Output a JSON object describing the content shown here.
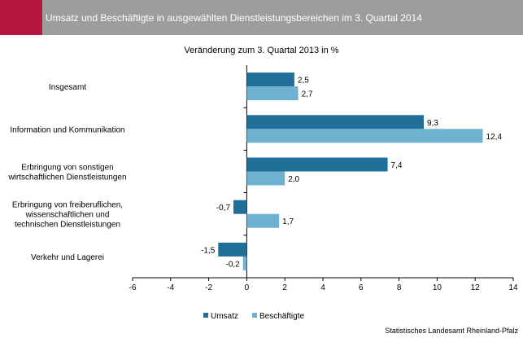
{
  "header": {
    "title": "Umsatz und Beschäftigte in ausgewählten Dienstleistungsbereichen im 3. Quartal 2014",
    "accent_color": "#b7163f",
    "background_color": "#9d9d9d"
  },
  "source": "Statistisches Landesamt Rheinland-Pfalz",
  "chart_data": {
    "type": "bar",
    "orientation": "horizontal",
    "title": "Veränderung zum 3. Quartal 2013 in %",
    "categories": [
      [
        "Insgesamt"
      ],
      [
        "Information und Kommunikation"
      ],
      [
        "Erbringung von sonstigen",
        "wirtschaftlichen Dienstleistungen"
      ],
      [
        "Erbringung von freiberuflichen,",
        "wissenschaftlichen und",
        "technischen Dienstleistungen"
      ],
      [
        "Verkehr und Lagerei"
      ]
    ],
    "series": [
      {
        "name": "Umsatz",
        "color": "#1f6f98",
        "values": [
          2.5,
          9.3,
          7.4,
          -0.7,
          -1.5
        ],
        "labels": [
          "2,5",
          "9,3",
          "7,4",
          "-0,7",
          "-1,5"
        ]
      },
      {
        "name": "Beschäftigte",
        "color": "#6fb1d1",
        "values": [
          2.7,
          12.4,
          2.0,
          1.7,
          -0.2
        ],
        "labels": [
          "2,7",
          "12,4",
          "2,0",
          "1,7",
          "-0,2"
        ]
      }
    ],
    "xlim": [
      -6,
      14
    ],
    "xticks": [
      -6,
      -4,
      -2,
      0,
      2,
      4,
      6,
      8,
      10,
      12,
      14
    ],
    "xtick_labels": [
      "-6",
      "-4",
      "-2",
      "0",
      "2",
      "4",
      "6",
      "8",
      "10",
      "12",
      "14"
    ],
    "legend": "bottom-center",
    "grid": false
  }
}
